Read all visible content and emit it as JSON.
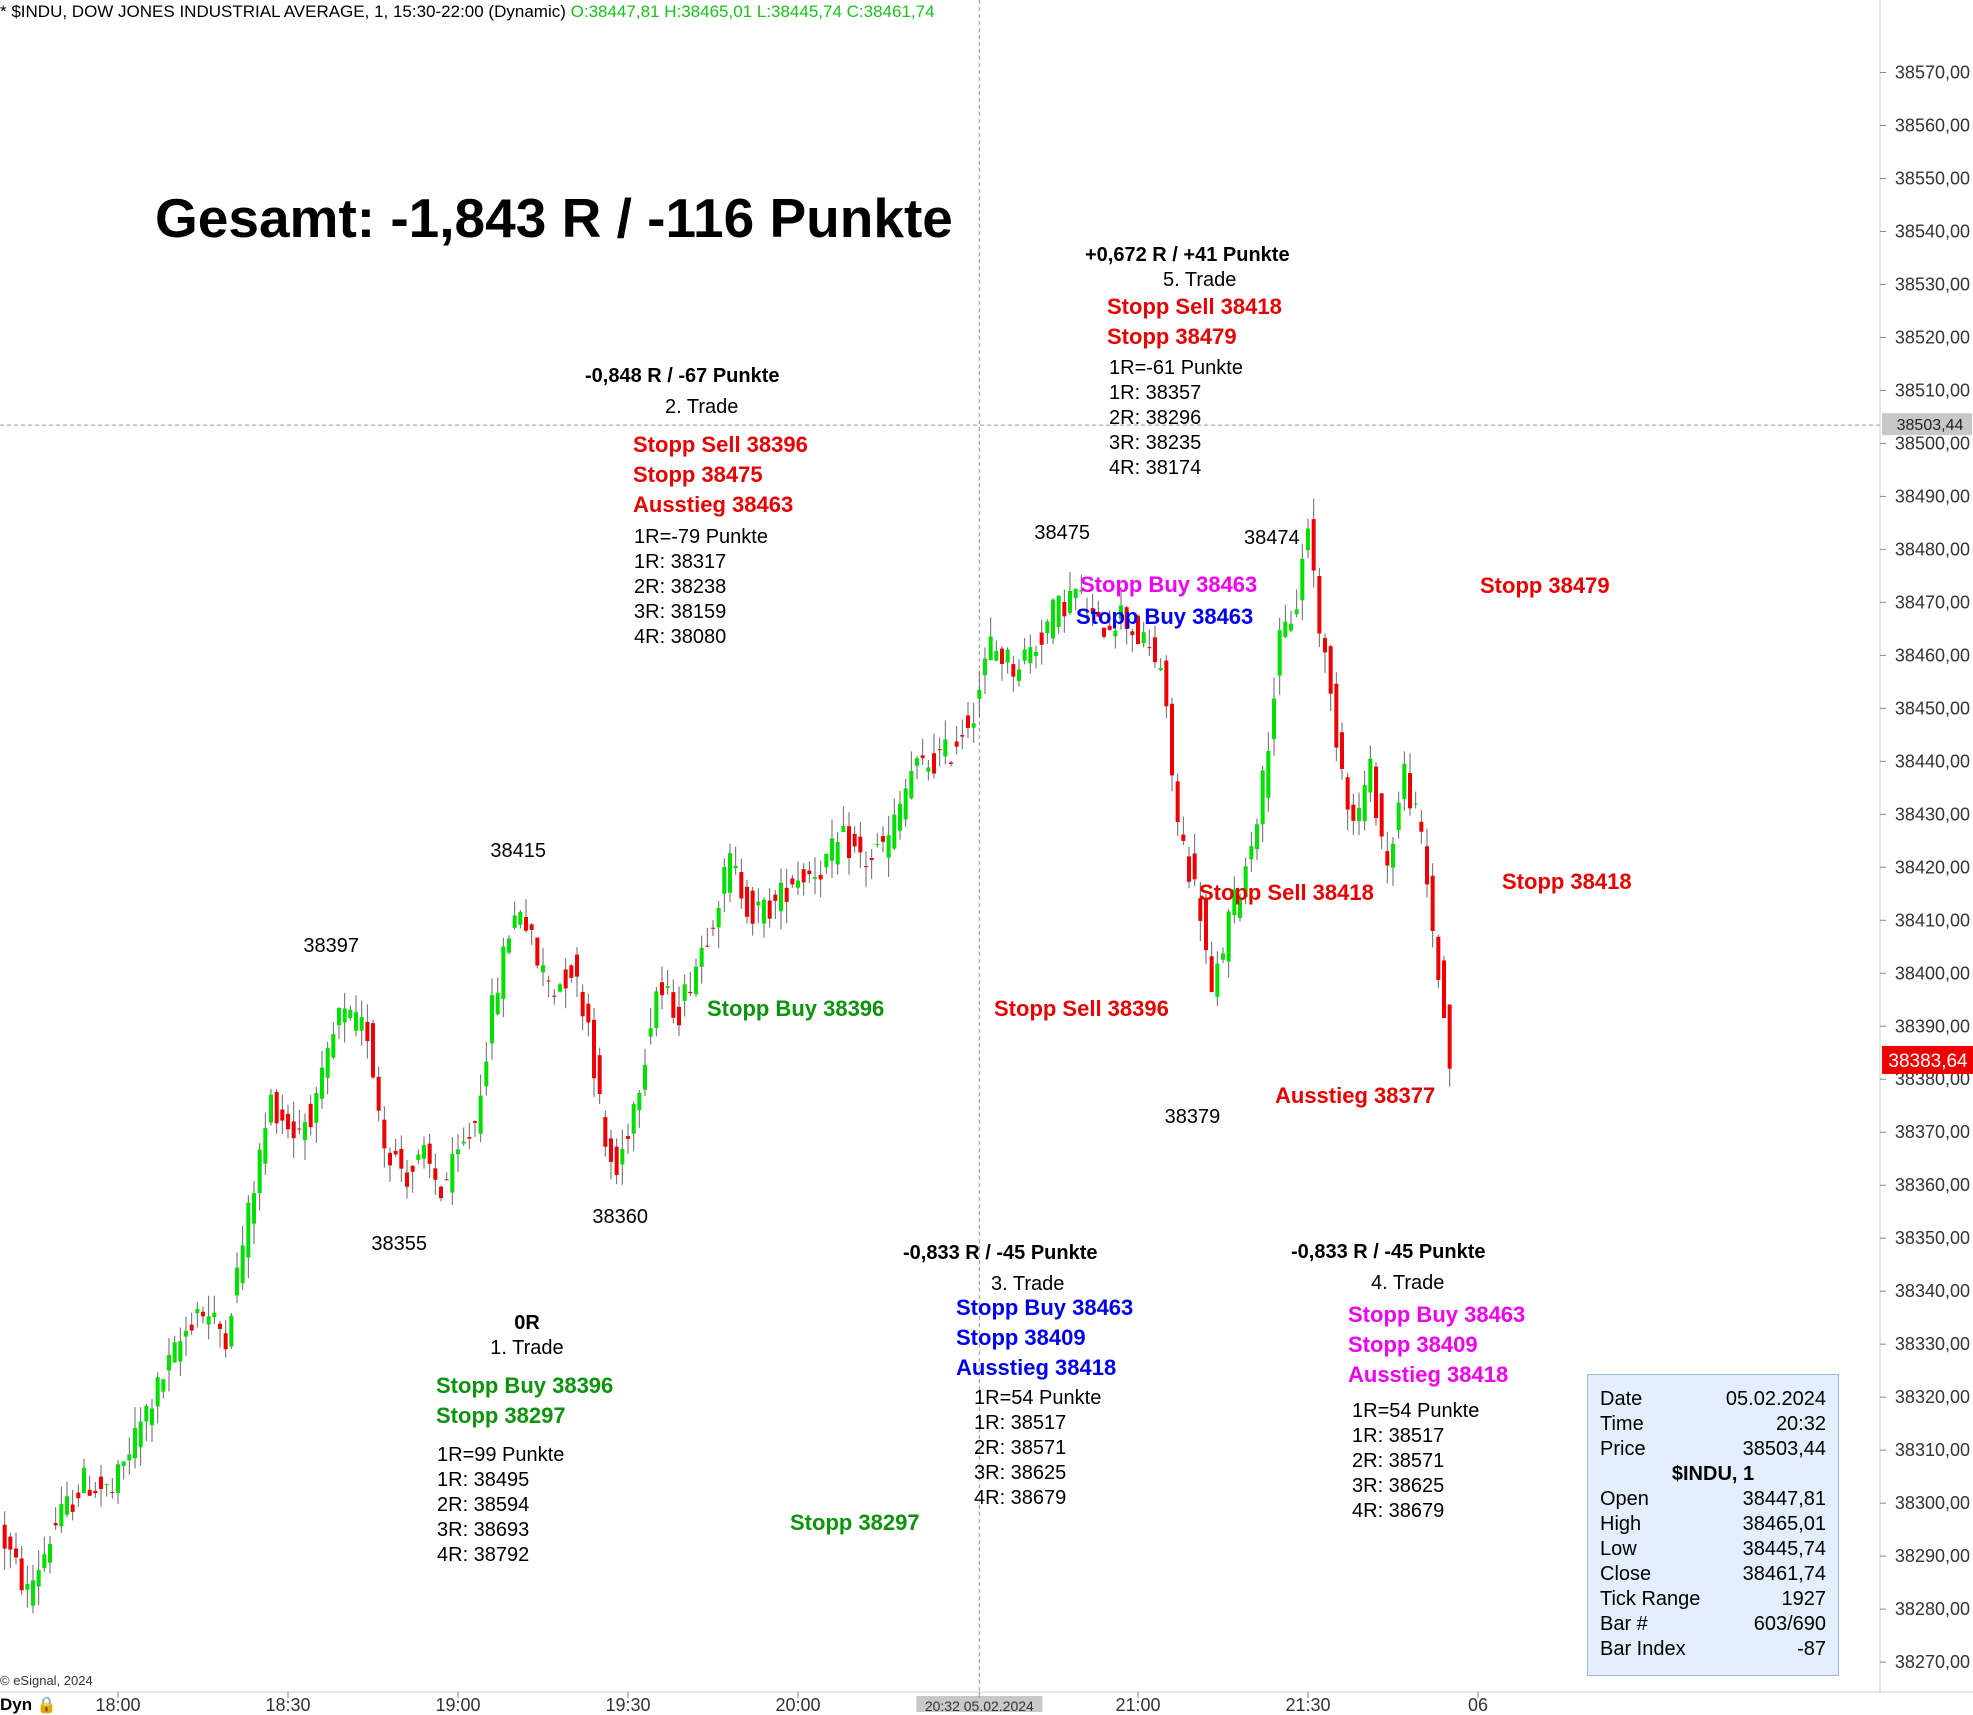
{
  "header": {
    "title": "* $INDU, DOW JONES INDUSTRIAL AVERAGE, 1, 15:30-22:00 (Dynamic)",
    "ohlc": "O:38447,81 H:38465,01 L:38445,74 C:38461,74"
  },
  "summary": "Gesamt: -1,843 R / -116 Punkte",
  "trades": [
    {
      "result": "0R",
      "name": "1. Trade",
      "orders": [
        "Stopp Buy 38396",
        "Stopp 38297"
      ],
      "levels": [
        "1R=99 Punkte",
        "1R: 38495",
        "2R: 38594",
        "3R: 38693",
        "4R: 38792"
      ]
    },
    {
      "result": "-0,848 R / -67 Punkte",
      "name": "2. Trade",
      "orders": [
        "Stopp Sell 38396",
        "Stopp 38475",
        "Ausstieg 38463"
      ],
      "levels": [
        "1R=-79 Punkte",
        "1R: 38317",
        "2R: 38238",
        "3R: 38159",
        "4R: 38080"
      ]
    },
    {
      "result": "-0,833 R / -45 Punkte",
      "name": "3. Trade",
      "orders": [
        "Stopp Buy 38463",
        "Stopp 38409",
        "Ausstieg 38418"
      ],
      "levels": [
        "1R=54 Punkte",
        "1R: 38517",
        "2R: 38571",
        "3R: 38625",
        "4R: 38679"
      ]
    },
    {
      "result": "-0,833 R / -45 Punkte",
      "name": "4. Trade",
      "orders": [
        "Stopp Buy 38463",
        "Stopp 38409",
        "Ausstieg 38418"
      ],
      "levels": [
        "1R=54 Punkte",
        "1R: 38517",
        "2R: 38571",
        "3R: 38625",
        "4R: 38679"
      ]
    },
    {
      "result": "+0,672 R / +41 Punkte",
      "name": "5. Trade",
      "orders": [
        "Stopp Sell 38418",
        "Stopp 38479"
      ],
      "levels": [
        "1R=-61 Punkte",
        "1R: 38357",
        "2R: 38296",
        "3R: 38235",
        "4R: 38174"
      ]
    }
  ],
  "chart_labels": {
    "stopp_buy_1": "Stopp Buy 38396",
    "stopp_1": "Stopp 38297",
    "stopp_sell_2": "Stopp Sell 38396",
    "stopp_buy_4": "Stopp Buy 38463",
    "stopp_buy_3": "Stopp Buy 38463",
    "stopp_sell_5": "Stopp Sell 38418",
    "stopp_5": "Stopp 38479",
    "stopp_3": "Stopp 38418",
    "ausstieg_5": "Ausstieg 38377"
  },
  "infobox": {
    "rows": [
      [
        "Date",
        "05.02.2024"
      ],
      [
        "Time",
        "20:32"
      ],
      [
        "Price",
        "38503,44"
      ]
    ],
    "symbol": "$INDU, 1",
    "ohlc_rows": [
      [
        "Open",
        "38447,81"
      ],
      [
        "High",
        "38465,01"
      ],
      [
        "Low",
        "38445,74"
      ],
      [
        "Close",
        "38461,74"
      ],
      [
        "Tick Range",
        "1927"
      ],
      [
        "Bar #",
        "603/690"
      ],
      [
        "Bar Index",
        "-87"
      ]
    ]
  },
  "footer": "© eSignal, 2024",
  "dyn_label": "Dyn",
  "colors": {
    "up": "#00e000",
    "down": "#ee0000",
    "last_price_bg": "#ee0000",
    "crosshair_bg": "#c8c8c8",
    "infobox_bg": "#e3efff"
  },
  "chart_data": {
    "type": "candlestick",
    "ylim": [
      38266,
      38577
    ],
    "y_ticks": [
      "38570,00",
      "38560,00",
      "38550,00",
      "38540,00",
      "38530,00",
      "38520,00",
      "38510,00",
      "38500,00",
      "38490,00",
      "38480,00",
      "38470,00",
      "38460,00",
      "38450,00",
      "38440,00",
      "38430,00",
      "38420,00",
      "38410,00",
      "38400,00",
      "38390,00",
      "38380,00",
      "38370,00",
      "38360,00",
      "38350,00",
      "38340,00",
      "38330,00",
      "38320,00",
      "38310,00",
      "38300,00",
      "38290,00",
      "38280,00",
      "38270,00"
    ],
    "x_ticks": [
      "18:00",
      "18:30",
      "19:00",
      "19:30",
      "20:00",
      "20:32 05.02.2024",
      "21:00",
      "21:30",
      "06"
    ],
    "crosshair_price": "38503,44",
    "last_price": "38383,64",
    "swing_labels": [
      {
        "text": "38397",
        "time": "18:38",
        "price": 38397
      },
      {
        "text": "38355",
        "time": "18:50",
        "price": 38355
      },
      {
        "text": "38415",
        "time": "19:11",
        "price": 38415
      },
      {
        "text": "38360",
        "time": "19:29",
        "price": 38360
      },
      {
        "text": "38475",
        "time": "20:47",
        "price": 38475
      },
      {
        "text": "38474",
        "time": "21:24",
        "price": 38474
      },
      {
        "text": "38379",
        "time": "21:10",
        "price": 38379
      }
    ],
    "price_path": [
      [
        "17:40",
        38295
      ],
      [
        "17:45",
        38283
      ],
      [
        "17:50",
        38296
      ],
      [
        "17:55",
        38304
      ],
      [
        "18:00",
        38302
      ],
      [
        "18:05",
        38315
      ],
      [
        "18:10",
        38326
      ],
      [
        "18:15",
        38337
      ],
      [
        "18:20",
        38332
      ],
      [
        "18:25",
        38360
      ],
      [
        "18:28",
        38376
      ],
      [
        "18:32",
        38370
      ],
      [
        "18:36",
        38375
      ],
      [
        "18:40",
        38392
      ],
      [
        "18:45",
        38389
      ],
      [
        "18:48",
        38368
      ],
      [
        "18:52",
        38362
      ],
      [
        "18:55",
        38365
      ],
      [
        "18:58",
        38359
      ],
      [
        "19:01",
        38365
      ],
      [
        "19:04",
        38372
      ],
      [
        "19:07",
        38393
      ],
      [
        "19:10",
        38408
      ],
      [
        "19:12",
        38413
      ],
      [
        "19:15",
        38402
      ],
      [
        "19:18",
        38397
      ],
      [
        "19:21",
        38401
      ],
      [
        "19:24",
        38391
      ],
      [
        "19:27",
        38367
      ],
      [
        "19:29",
        38362
      ],
      [
        "19:33",
        38380
      ],
      [
        "19:36",
        38397
      ],
      [
        "19:40",
        38393
      ],
      [
        "19:45",
        38408
      ],
      [
        "19:49",
        38421
      ],
      [
        "19:53",
        38411
      ],
      [
        "19:57",
        38413
      ],
      [
        "20:00",
        38418
      ],
      [
        "20:05",
        38420
      ],
      [
        "20:09",
        38425
      ],
      [
        "20:13",
        38421
      ],
      [
        "20:17",
        38425
      ],
      [
        "20:21",
        38438
      ],
      [
        "20:25",
        38440
      ],
      [
        "20:28",
        38442
      ],
      [
        "20:32",
        38450
      ],
      [
        "20:35",
        38462
      ],
      [
        "20:39",
        38458
      ],
      [
        "20:43",
        38462
      ],
      [
        "20:46",
        38468
      ],
      [
        "20:50",
        38472
      ],
      [
        "20:54",
        38465
      ],
      [
        "20:58",
        38468
      ],
      [
        "21:02",
        38462
      ],
      [
        "21:05",
        38458
      ],
      [
        "21:08",
        38428
      ],
      [
        "21:10",
        38420
      ],
      [
        "21:12",
        38412
      ],
      [
        "21:14",
        38395
      ],
      [
        "21:17",
        38410
      ],
      [
        "21:20",
        38420
      ],
      [
        "21:23",
        38436
      ],
      [
        "21:26",
        38462
      ],
      [
        "21:29",
        38470
      ],
      [
        "21:31",
        38485
      ],
      [
        "21:33",
        38466
      ],
      [
        "21:36",
        38445
      ],
      [
        "21:39",
        38428
      ],
      [
        "21:42",
        38438
      ],
      [
        "21:45",
        38420
      ],
      [
        "21:48",
        38438
      ],
      [
        "21:51",
        38425
      ],
      [
        "21:54",
        38400
      ],
      [
        "21:56",
        38383
      ]
    ]
  }
}
